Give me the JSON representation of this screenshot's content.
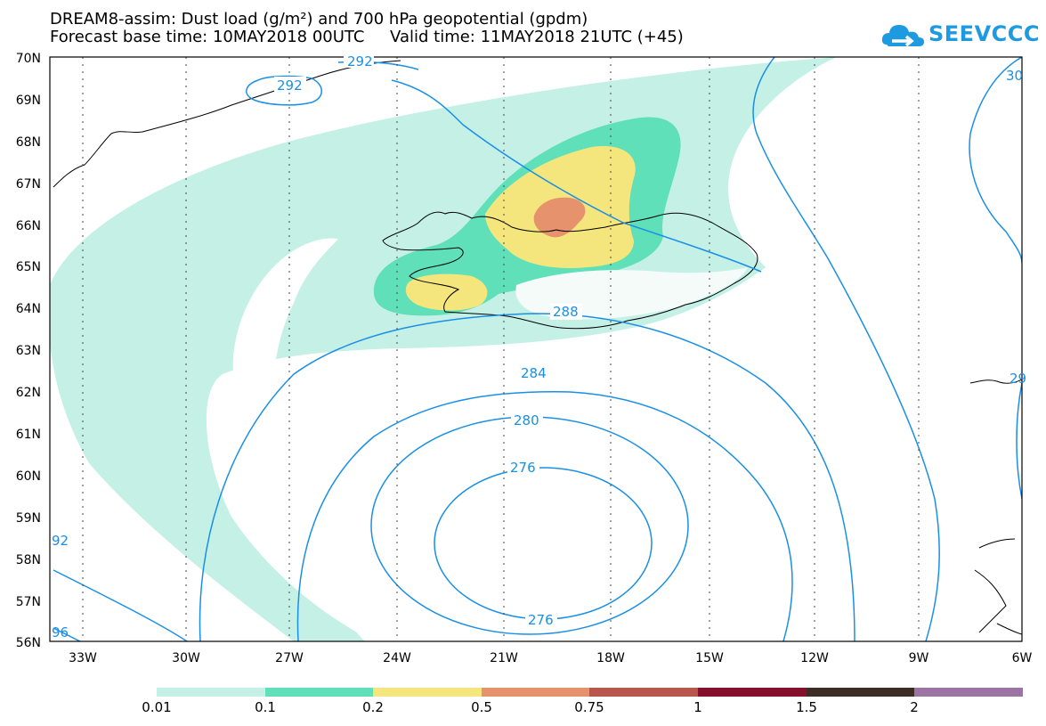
{
  "title": {
    "line1": "DREAM8-assim: Dust load (g/m²) and 700 hPa geopotential (gpdm)",
    "base_time_label": "Forecast base time: 10MAY2018 00UTC",
    "valid_time_label": "Valid time: 11MAY2018 21UTC (+45)"
  },
  "logo": {
    "text": "SEEVCCC",
    "icon": "cloud-logo-icon",
    "color": "#1e9be0"
  },
  "map": {
    "lat_labels": [
      "70N",
      "69N",
      "68N",
      "67N",
      "66N",
      "65N",
      "64N",
      "63N",
      "62N",
      "61N",
      "60N",
      "59N",
      "58N",
      "57N",
      "56N"
    ],
    "lon_labels": [
      "33W",
      "30W",
      "27W",
      "24W",
      "21W",
      "18W",
      "15W",
      "12W",
      "9W",
      "6W"
    ],
    "contour_labels": [
      "292",
      "292",
      "288",
      "284",
      "280",
      "276",
      "276",
      "92",
      "96",
      "30",
      "29"
    ],
    "contour_color": "#1a8fe6"
  },
  "colorbar": {
    "labels": [
      "0.01",
      "0.1",
      "0.2",
      "0.5",
      "0.75",
      "1",
      "1.5",
      "2"
    ],
    "colors": [
      "#c4f0e6",
      "#5fe0b8",
      "#f4e67c",
      "#e6926c",
      "#b8584c",
      "#84102c",
      "#3c2c24",
      "#9c74a4"
    ]
  }
}
